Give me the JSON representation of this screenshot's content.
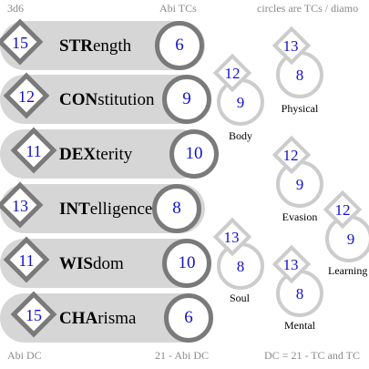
{
  "header": {
    "left": "3d6",
    "middle": "Abi TCs",
    "right": "circles are TCs / diamo"
  },
  "footer": {
    "left": "Abi DC",
    "middle": "21 - Abi DC",
    "right": "DC = 21 - TC and TC"
  },
  "abilities": [
    {
      "abbr": "STR",
      "rest": "ength",
      "dc": "15",
      "tc": "6"
    },
    {
      "abbr": "CON",
      "rest": "stitution",
      "dc": "12",
      "tc": "9"
    },
    {
      "abbr": "DEX",
      "rest": "terity",
      "dc": "11",
      "tc": "10"
    },
    {
      "abbr": "INT",
      "rest": "elligence",
      "dc": "13",
      "tc": "8"
    },
    {
      "abbr": "WIS",
      "rest": "dom",
      "dc": "11",
      "tc": "10"
    },
    {
      "abbr": "CHA",
      "rest": "risma",
      "dc": "15",
      "tc": "6"
    }
  ],
  "saves": [
    {
      "label": "Body",
      "dc": "12",
      "tc": "9"
    },
    {
      "label": "Soul",
      "dc": "13",
      "tc": "8"
    },
    {
      "label": "Physical",
      "dc": "13",
      "tc": "8"
    },
    {
      "label": "Evasion",
      "dc": "12",
      "tc": "9"
    },
    {
      "label": "Mental",
      "dc": "13",
      "tc": "8"
    },
    {
      "label": "Learning",
      "dc": "12",
      "tc": "9"
    }
  ]
}
